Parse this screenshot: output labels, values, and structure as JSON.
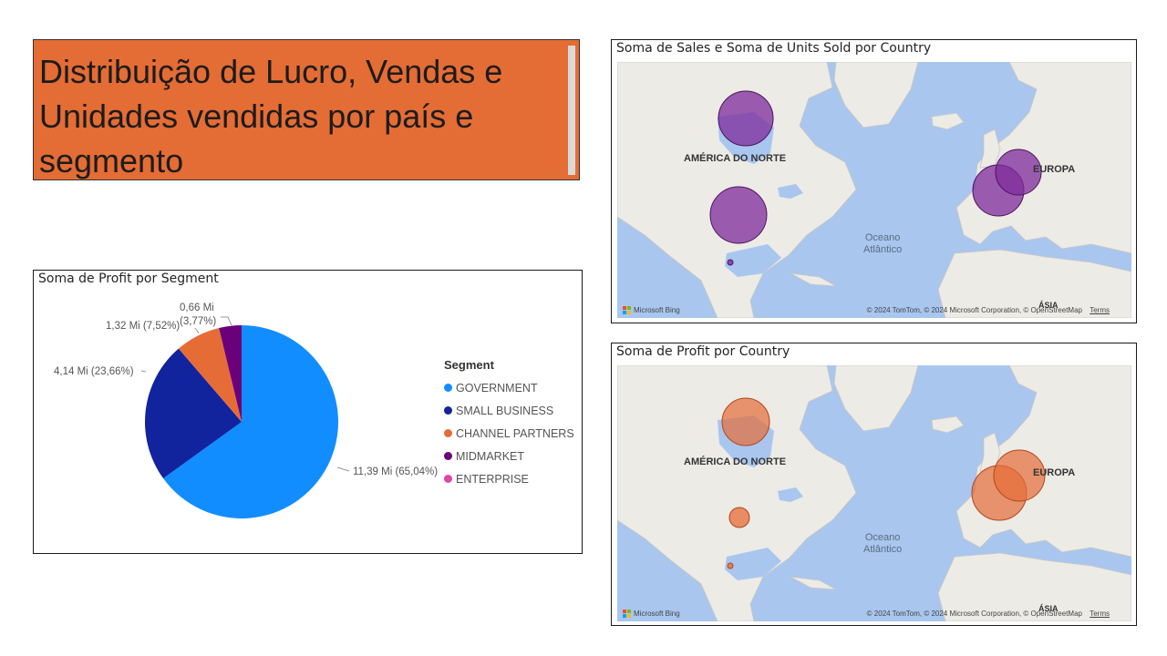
{
  "header": {
    "title": "Distribuição de Lucro, Vendas e Unidades vendidas por país e segmento"
  },
  "pie": {
    "title": "Soma de Profit por Segment",
    "legend_title": "Segment",
    "labels": {
      "government": "11,39 Mi (65,04%)",
      "small_business": "4,14 Mi (23,66%)",
      "channel_partners": "1,32 Mi (7,52%)",
      "midmarket_value": "0,66 Mi",
      "midmarket_pct": "(3,77%)"
    },
    "legend": [
      {
        "name": "GOVERNMENT",
        "color": "#118dff"
      },
      {
        "name": "SMALL BUSINESS",
        "color": "#12239e"
      },
      {
        "name": "CHANNEL PARTNERS",
        "color": "#e66c37"
      },
      {
        "name": "MIDMARKET",
        "color": "#6b007b"
      },
      {
        "name": "ENTERPRISE",
        "color": "#e044a7"
      }
    ]
  },
  "chart_data": {
    "type": "pie",
    "title": "Soma de Profit por Segment",
    "unit": "Mi",
    "categories": [
      "GOVERNMENT",
      "SMALL BUSINESS",
      "CHANNEL PARTNERS",
      "MIDMARKET",
      "ENTERPRISE"
    ],
    "values": [
      11.39,
      4.14,
      1.32,
      0.66,
      0
    ],
    "percentages": [
      65.04,
      23.66,
      7.52,
      3.77,
      0
    ],
    "colors": [
      "#118dff",
      "#12239e",
      "#e66c37",
      "#6b007b",
      "#e044a7"
    ],
    "legend": "right"
  },
  "maps": [
    {
      "title": "Soma de Sales e Soma de Units Sold por Country",
      "bubble_color": "#7f2b9b",
      "label_north_america": "AMÉRICA DO NORTE",
      "label_europe": "EUROPA",
      "ocean_line1": "Oceano",
      "ocean_line2": "Atlântico",
      "logo": "Microsoft Bing",
      "copyright": "© 2024 TomTom, © 2024 Microsoft Corporation, © OpenStreetMap",
      "terms": "Terms",
      "asia": "ÁSIA"
    },
    {
      "title": "Soma de Profit por Country",
      "bubble_color": "#e66c37",
      "label_north_america": "AMÉRICA DO NORTE",
      "label_europe": "EUROPA",
      "ocean_line1": "Oceano",
      "ocean_line2": "Atlântico",
      "logo": "Microsoft Bing",
      "copyright": "© 2024 TomTom, © 2024 Microsoft Corporation, © OpenStreetMap",
      "terms": "Terms",
      "asia": "ÁSIA"
    }
  ]
}
